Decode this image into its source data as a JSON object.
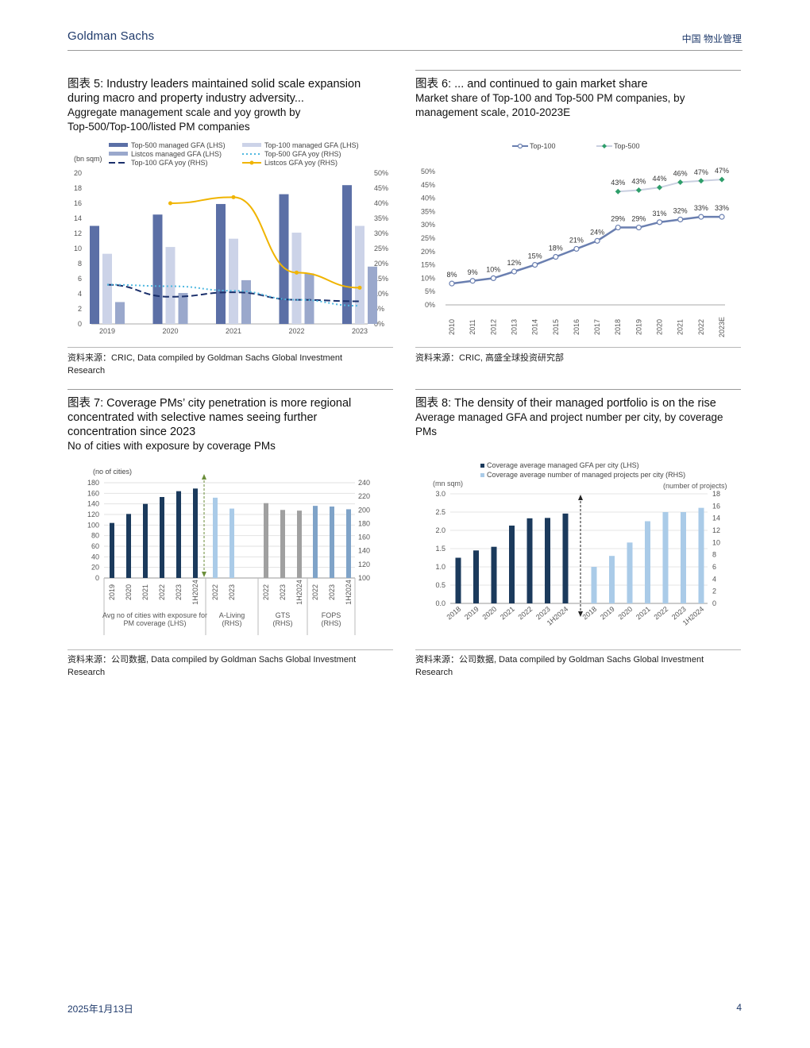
{
  "header": {
    "brand": "Goldman Sachs",
    "section": "中国 物业管理"
  },
  "footer": {
    "date": "2025年1月13日",
    "page": "4"
  },
  "panels": {
    "p5": {
      "title1": "图表 5: Industry leaders maintained solid scale expansion",
      "title2": "during macro and property industry adversity...",
      "sub1": "Aggregate management scale and yoy growth by",
      "sub2": "Top-500/Top-100/listed PM companies",
      "source1": "资料来源：CRIC, Data compiled by Goldman Sachs Global Investment",
      "source2": "Research"
    },
    "p6": {
      "title1": "图表 6: ... and continued to gain market share",
      "sub1": "Market share of Top-100 and Top-500 PM companies, by",
      "sub2": "management scale, 2010-2023E",
      "source1": "资料来源：CRIC, 高盛全球投资研究部"
    },
    "p7": {
      "title1": "图表 7: Coverage PMs’ city penetration is more regional",
      "title2": "concentrated with selective names seeing further",
      "title3": "concentration since 2023",
      "sub1": "No of cities with exposure by coverage PMs",
      "source1": "资料来源：公司数据, Data compiled by Goldman Sachs Global Investment",
      "source2": "Research"
    },
    "p8": {
      "title1": "图表 8: The density of their managed portfolio is on the rise",
      "sub1": "Average managed GFA and project number per city, by coverage",
      "sub2": "PMs",
      "source1": "资料来源：公司数据, Data compiled by Goldman Sachs Global Investment",
      "source2": "Research"
    }
  },
  "chart_data": [
    {
      "id": "fig5",
      "type": "bar",
      "ylabel": "(bn sqm)",
      "categories": [
        "2019",
        "2020",
        "2021",
        "2022",
        "2023"
      ],
      "ylim": [
        0,
        20
      ],
      "y2lim": [
        0,
        0.5
      ],
      "yticks": [
        "20",
        "18",
        "16",
        "14",
        "12",
        "10",
        "8",
        "6",
        "4",
        "2",
        "0"
      ],
      "y2ticks": [
        "50%",
        "45%",
        "40%",
        "35%",
        "30%",
        "25%",
        "20%",
        "15%",
        "10%",
        "5%",
        "0%"
      ],
      "series": [
        {
          "name": "Top-500 managed GFA (LHS)",
          "kind": "bar",
          "color": "#5b6fa6",
          "values": [
            13,
            14.5,
            15.9,
            17.2,
            18.4
          ]
        },
        {
          "name": "Top-100 managed GFA (LHS)",
          "kind": "bar",
          "color": "#ccd3e8",
          "values": [
            9.3,
            10.2,
            11.3,
            12.1,
            13.0
          ]
        },
        {
          "name": "Listcos managed GFA (LHS)",
          "kind": "bar",
          "color": "#9aa8cc",
          "values": [
            2.9,
            4.1,
            5.8,
            6.7,
            7.6
          ]
        },
        {
          "name": "Top-100 GFA yoy (RHS)",
          "kind": "line",
          "color": "#1a2f6b",
          "dash": "8 4",
          "values": [
            0.13,
            0.09,
            0.105,
            0.08,
            0.075
          ]
        },
        {
          "name": "Top-500 GFA yoy (RHS)",
          "kind": "line",
          "color": "#4fb8e0",
          "dash": "2 3",
          "values": [
            0.13,
            0.125,
            0.11,
            0.08,
            0.06
          ]
        },
        {
          "name": "Listcos GFA yoy (RHS)",
          "kind": "line",
          "color": "#f0b400",
          "dash": "",
          "marker": true,
          "values": [
            null,
            0.4,
            0.42,
            0.17,
            0.12
          ]
        }
      ]
    },
    {
      "id": "fig6",
      "type": "line",
      "x": [
        "2010",
        "2011",
        "2012",
        "2013",
        "2014",
        "2015",
        "2016",
        "2017",
        "2018",
        "2019",
        "2020",
        "2021",
        "2022",
        "2023E"
      ],
      "ylim": [
        0,
        0.5
      ],
      "yticks": [
        "50%",
        "45%",
        "40%",
        "35%",
        "30%",
        "25%",
        "20%",
        "15%",
        "10%",
        "5%",
        "0%"
      ],
      "series": [
        {
          "name": "Top-100",
          "color": "#6a7fb0",
          "marker": "circle",
          "values": [
            0.08,
            0.09,
            0.1,
            0.125,
            0.15,
            0.18,
            0.21,
            0.24,
            0.29,
            0.29,
            0.31,
            0.32,
            0.33,
            0.33
          ],
          "labels": [
            "8%",
            "9%",
            "10%",
            "12%",
            "15%",
            "18%",
            "21%",
            "24%",
            "29%",
            "29%",
            "31%",
            "32%",
            "33%",
            "33%"
          ]
        },
        {
          "name": "Top-500",
          "color": "#c9cfe0",
          "markerColor": "#2e9e6a",
          "marker": "diamond",
          "values": [
            null,
            null,
            null,
            null,
            null,
            null,
            null,
            null,
            0.425,
            0.43,
            0.44,
            0.46,
            0.465,
            0.47
          ],
          "labels": [
            "",
            "",
            "",
            "",
            "",
            "",
            "",
            "",
            "43%",
            "43%",
            "44%",
            "46%",
            "47%",
            "47%"
          ]
        }
      ]
    },
    {
      "id": "fig7",
      "type": "bar",
      "ylabel": "(no of cities)",
      "ylim": [
        0,
        180
      ],
      "y2lim": [
        100,
        240
      ],
      "yticks": [
        "180",
        "160",
        "140",
        "120",
        "100",
        "80",
        "60",
        "40",
        "20",
        "0"
      ],
      "y2ticks": [
        "240",
        "220",
        "200",
        "180",
        "160",
        "140",
        "120",
        "100"
      ],
      "groups": [
        {
          "label1": "Avg no of cities with exposure for",
          "label2": "PM coverage (LHS)",
          "color": "#1b3a5c",
          "axis": "left",
          "categories": [
            "2019",
            "2020",
            "2021",
            "2022",
            "2023",
            "1H2024"
          ],
          "values": [
            104,
            121,
            140,
            153,
            164,
            169
          ]
        },
        {
          "label1": "A-Living",
          "label2": "(RHS)",
          "color": "#aacbe8",
          "axis": "right",
          "categories": [
            "2022",
            "2023"
          ],
          "values": [
            218,
            202
          ]
        },
        {
          "label1": "GTS",
          "label2": "(RHS)",
          "color": "#a0a0a0",
          "axis": "right",
          "categories": [
            "2022",
            "2023",
            "1H2024"
          ],
          "values": [
            210,
            200,
            199
          ]
        },
        {
          "label1": "FOPS",
          "label2": "(RHS)",
          "color": "#7fa3c8",
          "axis": "right",
          "categories": [
            "2022",
            "2023",
            "1H2024"
          ],
          "values": [
            206,
            205,
            201
          ]
        }
      ]
    },
    {
      "id": "fig8",
      "type": "bar",
      "ylabel": "(mn sqm)",
      "y2label": "(number of projects)",
      "ylim": [
        0,
        3
      ],
      "y2lim": [
        0,
        18
      ],
      "yticks": [
        "3.0",
        "2.5",
        "2.0",
        "1.5",
        "1.0",
        "0.5",
        "0.0"
      ],
      "y2ticks": [
        "18",
        "16",
        "14",
        "12",
        "10",
        "8",
        "6",
        "4",
        "2",
        "0"
      ],
      "series": [
        {
          "name": "Coverage average managed GFA per city (LHS)",
          "color": "#1b3a5c",
          "axis": "left",
          "categories": [
            "2018",
            "2019",
            "2020",
            "2021",
            "2022",
            "2023",
            "1H2024"
          ],
          "values": [
            1.25,
            1.45,
            1.55,
            2.13,
            2.33,
            2.34,
            2.46
          ]
        },
        {
          "name": "Coverage average number of managed projects per city (RHS)",
          "color": "#aacbe8",
          "axis": "right",
          "categories": [
            "2018",
            "2019",
            "2020",
            "2021",
            "2022",
            "2023",
            "1H2024"
          ],
          "values": [
            6,
            7.8,
            10,
            13.5,
            15,
            15,
            15.7
          ]
        }
      ]
    }
  ]
}
